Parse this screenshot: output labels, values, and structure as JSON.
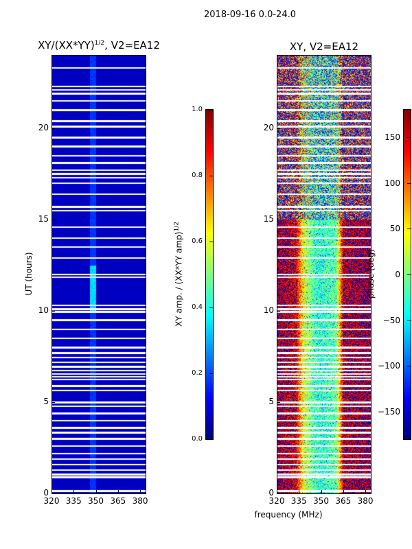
{
  "suptitle": "2018-09-16 0.0-24.0",
  "xlabel_shared": "frequency (MHz)",
  "chart_data": [
    {
      "type": "heatmap",
      "title": "XY/(XX*YY)^1/2, V2=EA12",
      "title_main": "XY/(XX*YY)",
      "title_sup": "1/2",
      "title_tail": ", V2=EA12",
      "xlabel": "frequency (MHz)",
      "ylabel": "UT (hours)",
      "xlim": [
        320,
        383.7
      ],
      "ylim": [
        0,
        24
      ],
      "xticks": [
        320,
        335,
        350,
        365,
        380
      ],
      "yticks": [
        0,
        5,
        10,
        15,
        20
      ],
      "colormap": "jet",
      "clim": [
        0,
        1
      ],
      "colorbar_label": "XY amp. / (XX*YY amp)^1/2",
      "colorbar_label_main": "XY amp. / (XX*YY amp)",
      "colorbar_label_sup": "1/2",
      "colorbar_ticks": [
        "0.0",
        "0.2",
        "0.4",
        "0.6",
        "0.8",
        "1.0"
      ],
      "background_value": 0.05,
      "bright_channel_band_mhz": [
        346,
        350
      ],
      "bright_channel_value": 0.15,
      "bright_time_range_hours": [
        10,
        12.5
      ],
      "bright_time_value": 0.3
    },
    {
      "type": "heatmap",
      "title": "XY, V2=EA12",
      "xlabel": "frequency (MHz)",
      "ylabel": "",
      "xlim": [
        320,
        383.7
      ],
      "ylim": [
        0,
        24
      ],
      "xticks": [
        320,
        335,
        350,
        365,
        380
      ],
      "yticks": [
        0,
        5,
        10,
        15,
        20
      ],
      "colormap": "jet",
      "clim": [
        -180,
        180
      ],
      "colorbar_label": "phase (deg)",
      "colorbar_ticks": [
        "150",
        "100",
        "50",
        "0",
        "−50",
        "−100",
        "−150"
      ],
      "colorbar_tick_values": [
        150,
        100,
        50,
        0,
        -50,
        -100,
        -150
      ],
      "phase_profile_mhz": [
        320,
        333,
        338,
        345,
        350,
        360,
        365,
        383.7
      ],
      "phase_profile_deg": [
        170,
        150,
        40,
        -20,
        -30,
        -10,
        160,
        170
      ]
    }
  ],
  "flagged_hours": [
    0.15,
    0.9,
    1.05,
    1.3,
    1.6,
    1.9,
    2.2,
    2.6,
    3.0,
    3.35,
    3.6,
    4.0,
    4.4,
    4.8,
    5.0,
    5.65,
    5.9,
    6.25,
    6.4,
    6.55,
    6.75,
    6.95,
    7.2,
    7.45,
    7.7,
    8.0,
    8.5,
    9.0,
    9.5,
    9.95,
    10.1,
    10.3,
    11.85,
    12.0,
    12.9,
    13.5,
    14.0,
    14.6,
    15.5,
    15.7,
    16.4,
    17.0,
    17.3,
    17.5,
    17.7,
    18.1,
    18.5,
    19.0,
    19.5,
    20.1,
    20.4,
    21.0,
    21.5,
    21.9,
    22.1,
    22.3,
    23.3
  ]
}
